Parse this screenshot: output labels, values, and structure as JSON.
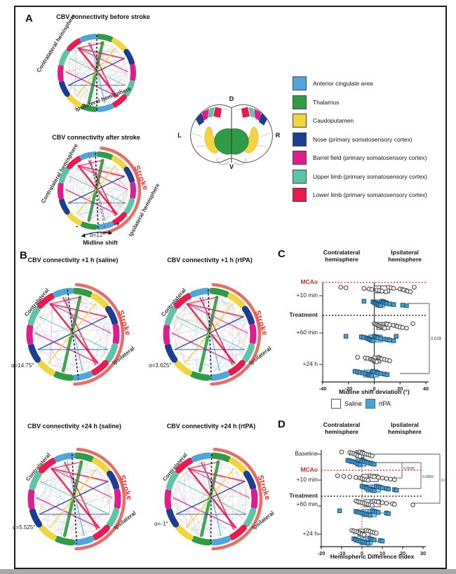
{
  "figure": {
    "panel_a_label": "A",
    "panel_b_label": "B",
    "panel_c_label": "C",
    "panel_d_label": "D"
  },
  "colors": {
    "anterior_cingulate": "#4fa6da",
    "thalamus": "#2f9b45",
    "caudoputamen": "#f2d43c",
    "nose": "#1c3e92",
    "barrel_field": "#dd1f8d",
    "upper_limb": "#5cc4a7",
    "lower_limb": "#e91a4d",
    "stroke_arc": "#e4544a",
    "stroke_text": "#e0372e",
    "rtpa_blue": "#4aa2d2",
    "rtpa_box": "#a9d2e8",
    "mcao_red": "#d92b1f"
  },
  "panel_a": {
    "diagram_before": {
      "title": "CBV connectivity before stroke",
      "contra_label": "Contralateral hemisphere",
      "ipsi_label": "Ipsilateral hemisphere"
    },
    "diagram_after": {
      "title": "CBV connectivity after stroke",
      "contra_label": "Contralateral hemisphere",
      "ipsi_label": "Ipsilateral hemisphere",
      "stroke_label": "Stroke",
      "alpha_label": "α=12°",
      "midline_caption": "Midline shift",
      "minus_sign": "-",
      "plus_sign": "+"
    },
    "anatomy_labels": {
      "dorsal": "D",
      "ventral": "V",
      "left": "L",
      "right": "R"
    },
    "legend": [
      {
        "label": "Anterior cingulate area",
        "color": "#4fa6da"
      },
      {
        "label": "Thalamus",
        "color": "#2f9b45"
      },
      {
        "label": "Caudoputamen",
        "color": "#f2d43c"
      },
      {
        "label": "Nose (primary somatosensory cortex)",
        "color": "#1c3e92"
      },
      {
        "label": "Barrel field (primary somatosensory cortex)",
        "color": "#dd1f8d"
      },
      {
        "label": "Upper limb (primary somatosensory cortex)",
        "color": "#5cc4a7"
      },
      {
        "label": "Lower limb (primary somatosensory cortex)",
        "color": "#e91a4d"
      }
    ]
  },
  "panel_b": {
    "diagrams": [
      {
        "title": "CBV connectivity +1 h (saline)",
        "alpha_label": "α=14.75°",
        "contra_label": "Contralateral",
        "ipsi_label": "Ipsilateral",
        "stroke_label": "Stroke"
      },
      {
        "title": "CBV connectivity +1 h (rtPA)",
        "alpha_label": "α=3.625°",
        "contra_label": "Contralateral",
        "ipsi_label": "Ipsilateral",
        "stroke_label": "Stroke"
      },
      {
        "title": "CBV connectivity +24 h (saline)",
        "alpha_label": "α=5.525°",
        "contra_label": "Contralateral",
        "ipsi_label": "Ipsilateral",
        "stroke_label": "Stroke"
      },
      {
        "title": "CBV connectivity +24 h (rtPA)",
        "alpha_label": "α=-1°",
        "contra_label": "Contralateral",
        "ipsi_label": "Ipsilateral",
        "stroke_label": "Stroke"
      }
    ]
  },
  "chart_data": [
    {
      "id": "C",
      "type": "scatter",
      "headers": [
        "Contralateral hemisphere",
        "Ipsilateral hemisphere"
      ],
      "xlabel": "Midline shift deviation (°)",
      "xlim": [
        -40,
        40
      ],
      "xticks": [
        -40,
        -20,
        0,
        20,
        40
      ],
      "legend": [
        {
          "label": "Saline",
          "color": "#ffffff"
        },
        {
          "label": "rtPA",
          "color": "#4aa2d2"
        }
      ],
      "row_labels": [
        {
          "text": "MCAo",
          "style": "mcao"
        },
        {
          "text": "+10 min",
          "style": ""
        },
        {
          "text": "Treatment",
          "style": "bold"
        },
        {
          "text": "+60 min",
          "style": ""
        },
        {
          "text": "+24 h",
          "style": ""
        }
      ],
      "groups": [
        {
          "time": "+10 min",
          "series": "Saline",
          "values": [
            -26,
            -22,
            -8,
            -4,
            -2,
            2,
            4,
            6,
            9,
            11,
            13,
            15,
            20,
            22,
            23,
            25,
            26,
            28,
            31
          ],
          "box": {
            "lo": -8,
            "q1": 0,
            "med": 5,
            "q3": 12,
            "hi": 22
          }
        },
        {
          "time": "+10 min",
          "series": "rtPA",
          "values": [
            -8,
            -1,
            0,
            1,
            2,
            3,
            3,
            4,
            5,
            6,
            7,
            8,
            9,
            10,
            12,
            15,
            22,
            25
          ],
          "box": {
            "lo": -1,
            "q1": 1,
            "med": 4,
            "q3": 8,
            "hi": 15
          }
        },
        {
          "time": "+60 min",
          "series": "Saline",
          "values": [
            0,
            1,
            2,
            3,
            4,
            5,
            6,
            7,
            8,
            9,
            10,
            12,
            15,
            17,
            18,
            20,
            22,
            25,
            30
          ],
          "box": {
            "lo": 0,
            "q1": 2,
            "med": 6,
            "q3": 12,
            "hi": 20
          }
        },
        {
          "time": "+60 min",
          "series": "rtPA",
          "values": [
            -22,
            -10,
            -8,
            -6,
            -5,
            -4,
            -3,
            -2,
            -1,
            0,
            1,
            2,
            3,
            5,
            8,
            10,
            12,
            15,
            17
          ],
          "box": {
            "lo": -10,
            "q1": -4,
            "med": 0,
            "q3": 6,
            "hi": 12
          }
        },
        {
          "time": "+24 h",
          "series": "Saline",
          "values": [
            -13,
            -7,
            -5,
            -3,
            -2,
            -1,
            0,
            1,
            2,
            3,
            4,
            5,
            6,
            8,
            10,
            12
          ],
          "box": {
            "lo": -7,
            "q1": -1,
            "med": 2,
            "q3": 5,
            "hi": 10
          }
        },
        {
          "time": "+24 h",
          "series": "rtPA",
          "values": [
            -15,
            -13,
            -11,
            -9,
            -7,
            -5,
            -4,
            -3,
            -2,
            -1,
            0,
            2,
            3,
            5,
            8,
            10
          ],
          "box": {
            "lo": -13,
            "q1": -8,
            "med": -3,
            "q3": 3,
            "hi": 8
          }
        }
      ],
      "pvalues": [
        "0.029"
      ]
    },
    {
      "id": "D",
      "type": "scatter",
      "headers": [
        "Contralateral hemisphere",
        "Ipsilateral hemisphere"
      ],
      "xlabel": "Hemispheric Difference Index",
      "xlim": [
        -20,
        30
      ],
      "xticks": [
        -20,
        -10,
        0,
        10,
        20,
        30
      ],
      "legend": [
        {
          "label": "Saline",
          "color": "#ffffff"
        },
        {
          "label": "rtPA",
          "color": "#4aa2d2"
        }
      ],
      "row_labels": [
        {
          "text": "Baseline",
          "style": ""
        },
        {
          "text": "MCAo",
          "style": "mcao"
        },
        {
          "text": "+10 min",
          "style": ""
        },
        {
          "text": "Treatment",
          "style": "bold"
        },
        {
          "text": "+60 min",
          "style": ""
        },
        {
          "text": "+24 h",
          "style": ""
        }
      ],
      "groups": [
        {
          "time": "Baseline",
          "series": "Saline",
          "values": [
            -10,
            -6,
            -5,
            -4,
            -3,
            -3,
            -2,
            -2,
            -1,
            -1,
            0,
            0,
            1,
            2,
            3,
            4,
            5
          ],
          "box": {
            "lo": -6,
            "q1": -3,
            "med": -1,
            "q3": 1,
            "hi": 4
          }
        },
        {
          "time": "Baseline",
          "series": "rtPA",
          "values": [
            -7,
            -6,
            -5,
            -4,
            -3,
            -2,
            -2,
            -1,
            -1,
            0,
            0,
            1,
            2,
            3,
            4,
            5,
            6
          ],
          "box": {
            "lo": -6,
            "q1": -3,
            "med": -1,
            "q3": 2,
            "hi": 5
          }
        },
        {
          "time": "+10 min",
          "series": "Saline",
          "values": [
            -12,
            -9,
            -6,
            -3,
            -1,
            0,
            1,
            2,
            3,
            4,
            5,
            6,
            8,
            10,
            12,
            14,
            16
          ],
          "box": {
            "lo": -3,
            "q1": 0,
            "med": 3,
            "q3": 8,
            "hi": 16
          }
        },
        {
          "time": "+10 min",
          "series": "rtPA",
          "values": [
            0,
            1,
            2,
            2,
            3,
            4,
            5,
            5,
            6,
            7,
            8,
            9,
            10,
            12,
            13,
            16,
            17
          ],
          "box": {
            "lo": 0,
            "q1": 2,
            "med": 5,
            "q3": 9,
            "hi": 13
          }
        },
        {
          "time": "+60 min",
          "series": "Saline",
          "values": [
            -3,
            -2,
            -1,
            0,
            1,
            2,
            3,
            4,
            5,
            6,
            7,
            8,
            10,
            12,
            15,
            16,
            25
          ],
          "box": {
            "lo": -2,
            "q1": 1,
            "med": 4,
            "q3": 9,
            "hi": 16
          }
        },
        {
          "time": "+60 min",
          "series": "rtPA",
          "values": [
            -11,
            -3,
            -2,
            -1,
            0,
            1,
            2,
            3,
            4,
            5,
            6,
            7,
            8,
            12,
            13
          ],
          "box": {
            "lo": -3,
            "q1": 0,
            "med": 3,
            "q3": 7,
            "hi": 13
          }
        },
        {
          "time": "+24 h",
          "series": "Saline",
          "values": [
            -5,
            -4,
            -3,
            -2,
            -1,
            -1,
            0,
            0,
            1,
            2,
            3,
            4,
            5,
            6,
            7
          ],
          "box": {
            "lo": -4,
            "q1": -2,
            "med": 1,
            "q3": 4,
            "hi": 7
          }
        },
        {
          "time": "+24 h",
          "series": "rtPA",
          "values": [
            -4,
            -3,
            -3,
            -2,
            -1,
            0,
            1,
            2,
            3,
            4,
            5,
            6,
            9,
            10
          ],
          "box": {
            "lo": -3,
            "q1": -1,
            "med": 2,
            "q3": 5,
            "hi": 9
          }
        }
      ],
      "pvalues": [
        "0.0036",
        "0.0083",
        "0.0003"
      ]
    }
  ]
}
